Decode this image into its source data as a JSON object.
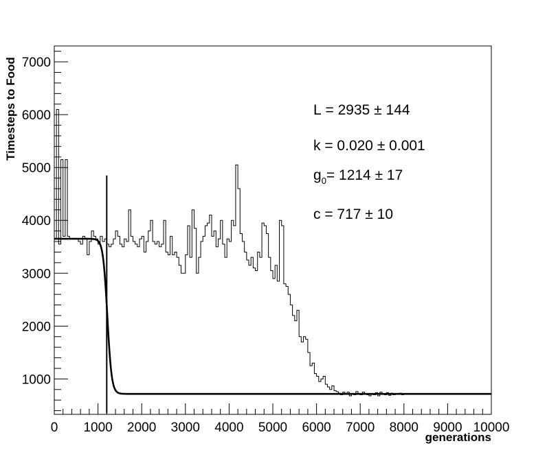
{
  "chart_data": {
    "type": "line",
    "xlabel": "generations",
    "ylabel": "Timesteps to Food",
    "xlim": [
      0,
      10000
    ],
    "ylim": [
      330,
      7300
    ],
    "x_ticks": [
      0,
      1000,
      2000,
      3000,
      4000,
      5000,
      6000,
      7000,
      8000,
      9000,
      10000
    ],
    "y_ticks": [
      1000,
      2000,
      3000,
      4000,
      5000,
      6000,
      7000
    ],
    "grid": false,
    "series": [
      {
        "style": "histogram-step",
        "bin_width": 50,
        "x_start": 0,
        "values": [
          3650,
          6100,
          3550,
          5150,
          3700,
          5150,
          3700,
          3650,
          3650,
          3650,
          3650,
          3600,
          3550,
          3700,
          3650,
          3350,
          3600,
          3800,
          3700,
          3650,
          3550,
          3700,
          3600,
          3650,
          3550,
          3500,
          3550,
          3650,
          3800,
          3700,
          3550,
          3500,
          3650,
          3600,
          4200,
          3700,
          3600,
          3550,
          3500,
          3650,
          3700,
          3400,
          3600,
          3800,
          4000,
          3600,
          3550,
          3600,
          3500,
          3550,
          4000,
          3400,
          3350,
          3700,
          3350,
          3400,
          3300,
          3150,
          3000,
          3000,
          3350,
          3900,
          3300,
          4200,
          3850,
          3000,
          3300,
          3600,
          3700,
          3900,
          3950,
          4100,
          3700,
          3800,
          3500,
          3650,
          4000,
          3550,
          3300,
          3650,
          3600,
          4000,
          3900,
          5050,
          4600,
          3750,
          3600,
          3400,
          3250,
          3150,
          3300,
          3100,
          3050,
          3400,
          3300,
          3950,
          3900,
          3750,
          3300,
          3050,
          2900,
          3150,
          2850,
          4000,
          3900,
          2800,
          2750,
          2600,
          2400,
          2200,
          2100,
          2300,
          1800,
          1700,
          1800,
          1750,
          1500,
          1250,
          1300,
          1100,
          1050,
          950,
          1000,
          1050,
          900,
          850,
          800,
          870,
          780,
          760,
          730,
          700,
          750,
          720,
          750,
          680,
          720,
          700,
          760,
          720,
          700,
          750,
          720,
          700,
          680,
          720,
          700,
          740,
          680,
          750,
          720,
          700,
          740,
          690,
          730,
          700,
          720,
          710,
          730,
          700
        ]
      },
      {
        "name": "",
        "style": "fit-curve",
        "model": "logistic",
        "params": {
          "L": 2935,
          "k": 0.02,
          "g0": 1214,
          "c": 717
        }
      }
    ],
    "fit_line_marker": {
      "x": 1200,
      "y_from": 350,
      "y_to": 4850
    }
  },
  "annotations": [
    {
      "label": "L",
      "sub": "",
      "text": " = 2935 ± 144"
    },
    {
      "label": "k",
      "sub": "",
      "text": " = 0.020 ± 0.001"
    },
    {
      "label": "g",
      "sub": "0",
      "text": "= 1214 ± 17"
    },
    {
      "label": "c",
      "sub": "",
      "text": " = 717 ± 10"
    }
  ],
  "tick_labels_x": [
    "0",
    "1000",
    "2000",
    "3000",
    "4000",
    "5000",
    "6000",
    "7000",
    "8000",
    "9000",
    "10000"
  ],
  "tick_labels_y": [
    "1000",
    "2000",
    "3000",
    "4000",
    "5000",
    "6000",
    "7000"
  ]
}
